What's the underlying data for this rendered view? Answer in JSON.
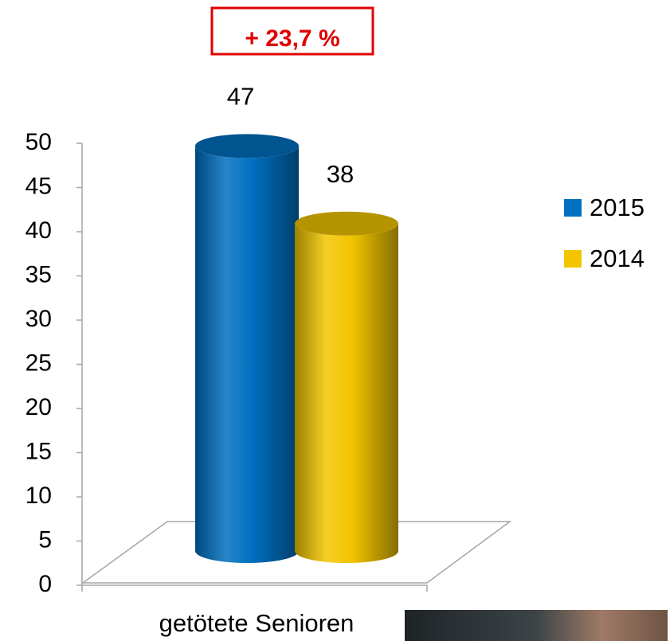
{
  "chart_data": {
    "type": "bar",
    "annotation": "+ 23,7 %",
    "categories": [
      "getötete Senioren"
    ],
    "series": [
      {
        "name": "2015",
        "color": "#0070c0",
        "values": [
          47
        ]
      },
      {
        "name": "2014",
        "color": "#f2c500",
        "values": [
          38
        ]
      }
    ],
    "ylim": [
      0,
      50
    ],
    "yticks": [
      0,
      5,
      10,
      15,
      20,
      25,
      30,
      35,
      40,
      45,
      50
    ],
    "legend": "right"
  }
}
